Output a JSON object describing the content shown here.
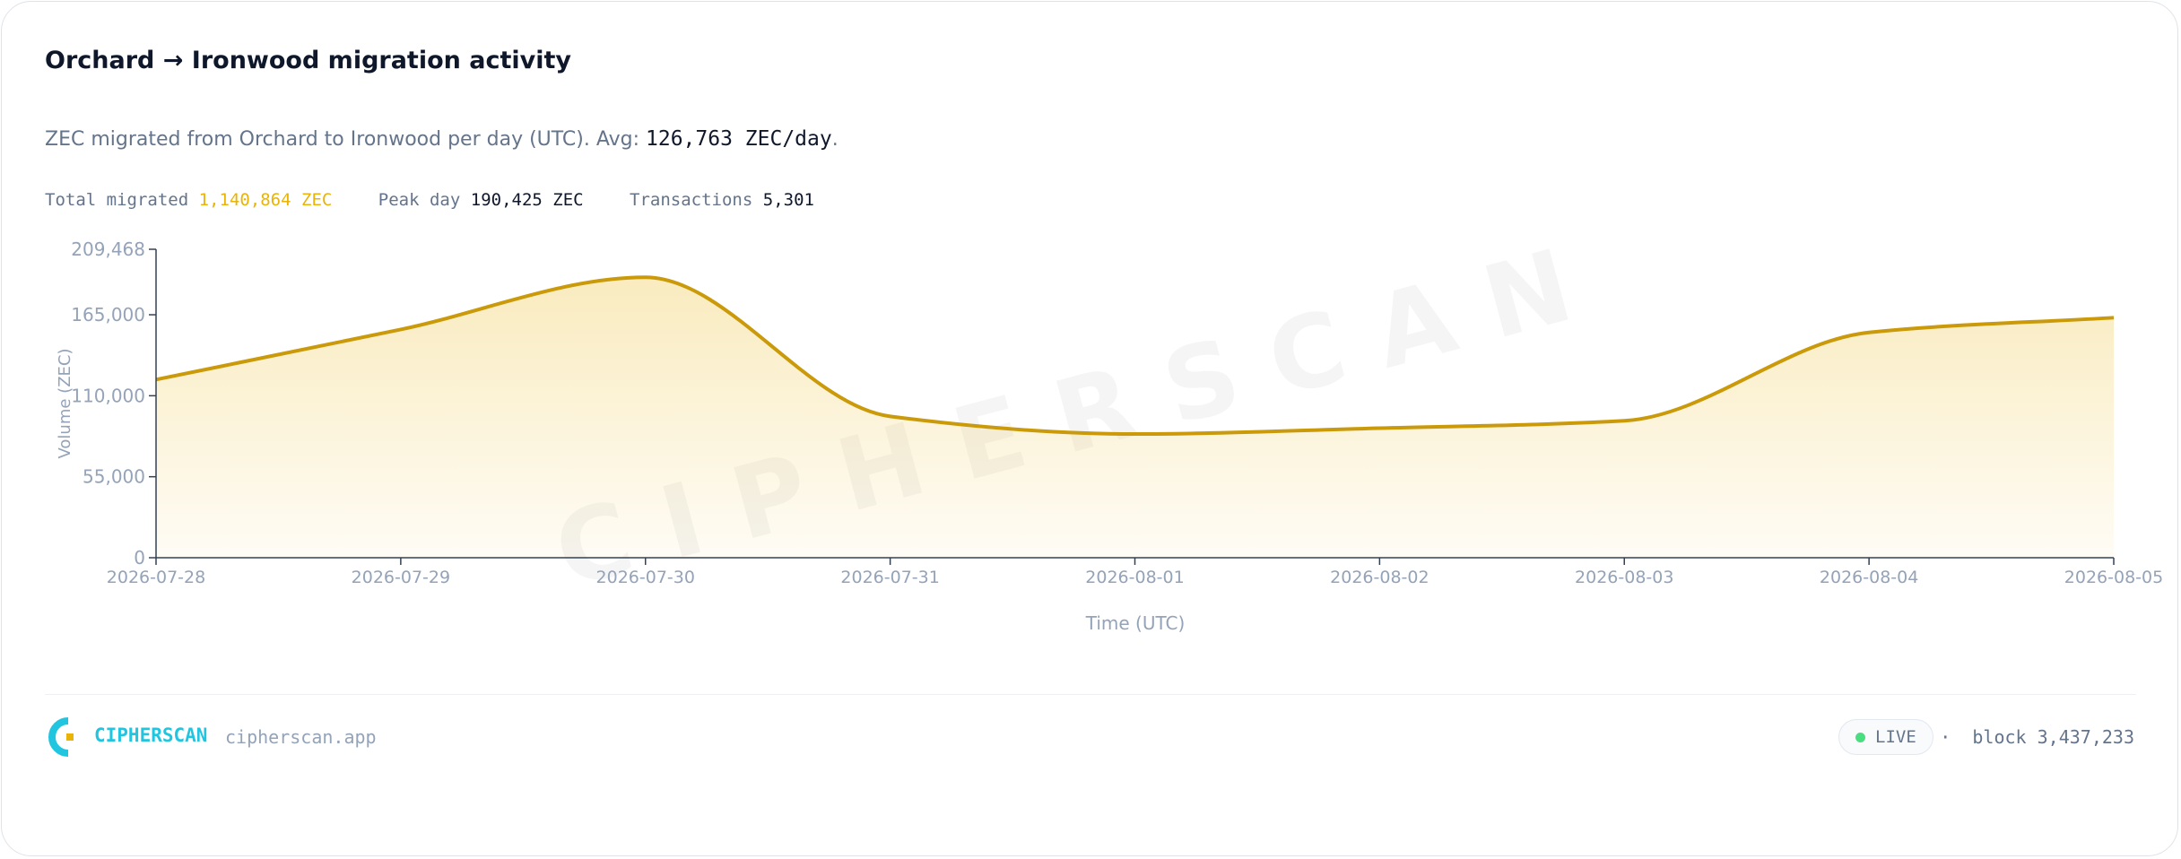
{
  "header": {
    "title": "Orchard → Ironwood migration activity",
    "subtitle": "ZEC migrated from Orchard to Ironwood per day (UTC). Avg:",
    "avg": "126,763 ZEC/day",
    "subtitle_end": "."
  },
  "stats": [
    {
      "label": "Total migrated",
      "value": "1,140,864 ZEC"
    },
    {
      "label": "Peak day",
      "value": "190,425 ZEC"
    },
    {
      "label": "Transactions",
      "value": "5,301"
    }
  ],
  "chart_data": {
    "type": "area",
    "watermark": "CIPHERSCAN",
    "x_label": "Time (UTC)",
    "y_label": "Volume (ZEC)",
    "x": [
      "2026-07-28",
      "2026-07-29",
      "2026-07-30",
      "2026-07-31",
      "2026-08-01",
      "2026-08-02",
      "2026-08-03",
      "2026-08-04",
      "2026-08-05"
    ],
    "values": [
      121000,
      155000,
      190425,
      96000,
      84000,
      88000,
      93000,
      153000,
      163000
    ],
    "color": "#ca9a0a",
    "ylim": [
      0,
      209468
    ],
    "yticks": [
      0,
      {
        "value": 55000,
        "label": "55,000"
      },
      {
        "value": 110000,
        "label": "110,000"
      },
      {
        "value": 165000,
        "label": "165,000"
      },
      {
        "value": 209468,
        "label": "209,468"
      }
    ]
  },
  "footer": {
    "brand": "CIPHERSCAN",
    "site": "cipherscan.app",
    "status": "LIVE",
    "separator": "·",
    "block_label": "block",
    "block": "3,437,233"
  }
}
